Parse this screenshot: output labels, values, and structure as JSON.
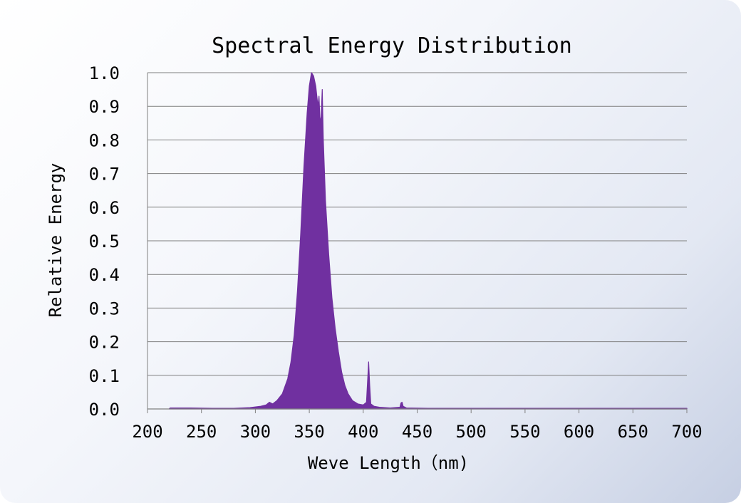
{
  "chart_data": {
    "type": "area",
    "title": "Spectral Energy Distribution",
    "xlabel": "Weve Length（nm)",
    "ylabel": "Relative Energy",
    "xlim": [
      200,
      700
    ],
    "ylim": [
      0,
      1.0
    ],
    "x_ticks": [
      "200",
      "250",
      "300",
      "350",
      "400",
      "450",
      "500",
      "550",
      "600",
      "650",
      "700"
    ],
    "y_ticks": [
      "0.0",
      "0.1",
      "0.2",
      "0.3",
      "0.4",
      "0.5",
      "0.6",
      "0.7",
      "0.8",
      "0.9",
      "1.0"
    ],
    "grid": true,
    "series": [
      {
        "color": "#7030a0",
        "points": [
          [
            220,
            0.0
          ],
          [
            221,
            0.003
          ],
          [
            240,
            0.003
          ],
          [
            260,
            0.002
          ],
          [
            280,
            0.002
          ],
          [
            295,
            0.004
          ],
          [
            305,
            0.008
          ],
          [
            310,
            0.012
          ],
          [
            313,
            0.02
          ],
          [
            316,
            0.015
          ],
          [
            320,
            0.025
          ],
          [
            325,
            0.045
          ],
          [
            330,
            0.09
          ],
          [
            333,
            0.14
          ],
          [
            336,
            0.22
          ],
          [
            339,
            0.35
          ],
          [
            342,
            0.52
          ],
          [
            345,
            0.72
          ],
          [
            348,
            0.88
          ],
          [
            350,
            0.96
          ],
          [
            352,
            1.0
          ],
          [
            354,
            0.99
          ],
          [
            356,
            0.96
          ],
          [
            358,
            0.9
          ],
          [
            359,
            0.93
          ],
          [
            360,
            0.85
          ],
          [
            361,
            0.87
          ],
          [
            362,
            0.95
          ],
          [
            363,
            0.8
          ],
          [
            365,
            0.62
          ],
          [
            368,
            0.46
          ],
          [
            371,
            0.33
          ],
          [
            374,
            0.24
          ],
          [
            377,
            0.17
          ],
          [
            380,
            0.11
          ],
          [
            383,
            0.07
          ],
          [
            386,
            0.045
          ],
          [
            390,
            0.025
          ],
          [
            395,
            0.015
          ],
          [
            400,
            0.012
          ],
          [
            403,
            0.02
          ],
          [
            404,
            0.08
          ],
          [
            405,
            0.14
          ],
          [
            406,
            0.07
          ],
          [
            407,
            0.015
          ],
          [
            410,
            0.008
          ],
          [
            415,
            0.005
          ],
          [
            425,
            0.003
          ],
          [
            434,
            0.005
          ],
          [
            435,
            0.018
          ],
          [
            436,
            0.02
          ],
          [
            437,
            0.008
          ],
          [
            440,
            0.003
          ],
          [
            460,
            0.002
          ],
          [
            500,
            0.002
          ],
          [
            550,
            0.002
          ],
          [
            600,
            0.002
          ],
          [
            650,
            0.002
          ],
          [
            700,
            0.002
          ],
          [
            700,
            0.0
          ]
        ]
      }
    ]
  }
}
